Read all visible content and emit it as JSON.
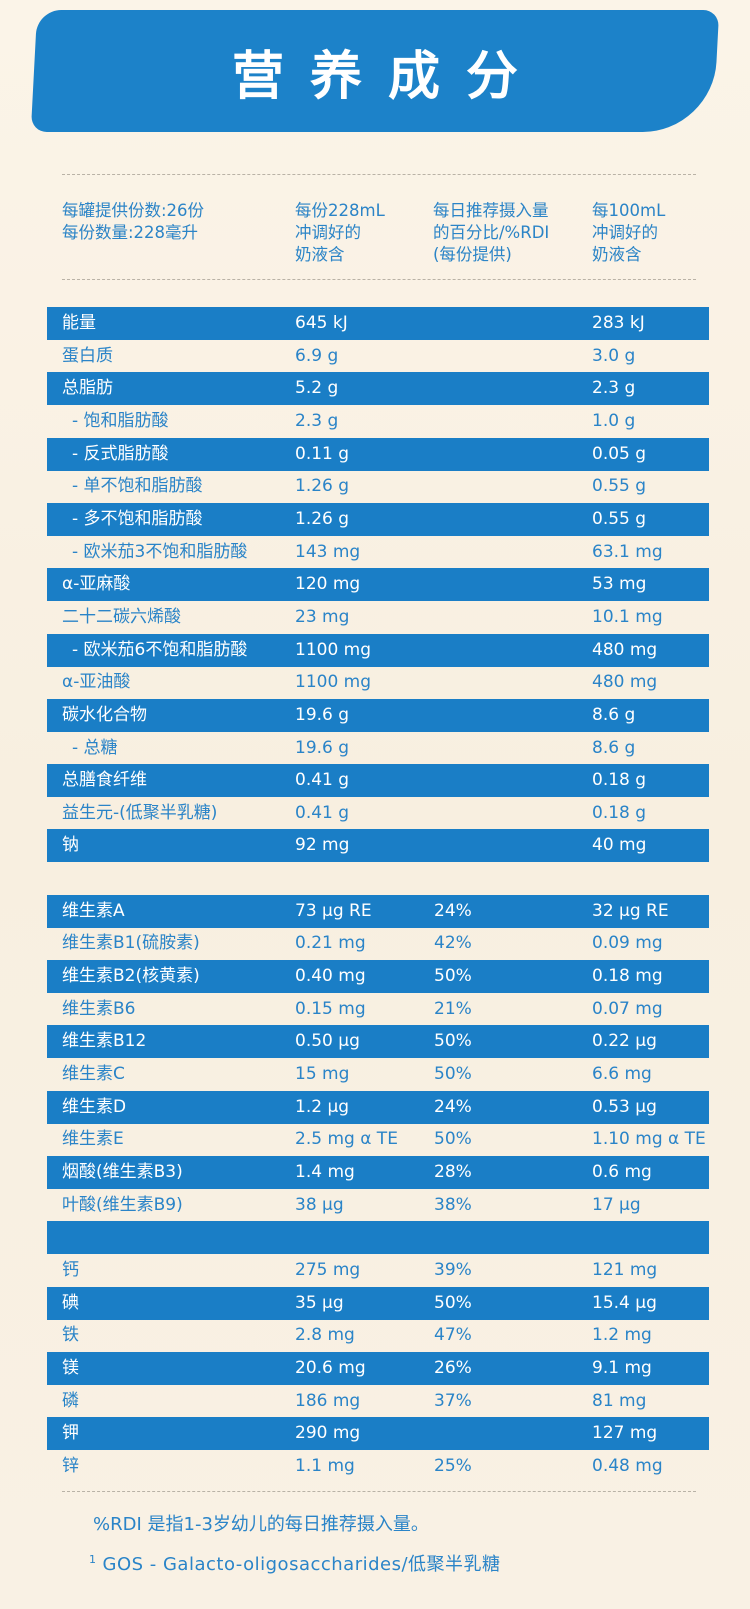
{
  "title": "营养成分",
  "header": {
    "col0": "每罐提供份数:26份\n每份数量:228毫升",
    "col1": "每份228mL\n冲调好的\n奶液含",
    "col2": "每日推荐摄入量\n的百分比/%RDI\n(每份提供)",
    "col3": "每100mL\n冲调好的\n奶液含"
  },
  "rows": [
    {
      "name": "能量",
      "per_serving": "645 kJ",
      "rdi": "",
      "per_100ml": "283 kJ",
      "style": "blue"
    },
    {
      "name": "蛋白质",
      "per_serving": "6.9 g",
      "rdi": "",
      "per_100ml": "3.0 g",
      "style": "light"
    },
    {
      "name": "总脂肪",
      "per_serving": "5.2 g",
      "rdi": "",
      "per_100ml": "2.3 g",
      "style": "blue"
    },
    {
      "name": "  - 饱和脂肪酸",
      "per_serving": "2.3 g",
      "rdi": "",
      "per_100ml": "1.0 g",
      "style": "light"
    },
    {
      "name": "  - 反式脂肪酸",
      "per_serving": "0.11 g",
      "rdi": "",
      "per_100ml": "0.05 g",
      "style": "blue"
    },
    {
      "name": "  - 单不饱和脂肪酸",
      "per_serving": "1.26 g",
      "rdi": "",
      "per_100ml": "0.55 g",
      "style": "light"
    },
    {
      "name": "  - 多不饱和脂肪酸",
      "per_serving": "1.26 g",
      "rdi": "",
      "per_100ml": "0.55 g",
      "style": "blue"
    },
    {
      "name": "  - 欧米茄3不饱和脂肪酸",
      "per_serving": "143 mg",
      "rdi": "",
      "per_100ml": "63.1 mg",
      "style": "light"
    },
    {
      "name": "α-亚麻酸",
      "per_serving": "120 mg",
      "rdi": "",
      "per_100ml": "53 mg",
      "style": "blue"
    },
    {
      "name": "二十二碳六烯酸",
      "per_serving": " 23 mg",
      "rdi": "",
      "per_100ml": "10.1 mg",
      "style": "light"
    },
    {
      "name": "  - 欧米茄6不饱和脂肪酸",
      "per_serving": "1100 mg",
      "rdi": "",
      "per_100ml": "480 mg",
      "style": "blue"
    },
    {
      "name": "α-亚油酸",
      "per_serving": "1100 mg",
      "rdi": "",
      "per_100ml": "480 mg",
      "style": "light"
    },
    {
      "name": "碳水化合物",
      "per_serving": "19.6 g",
      "rdi": "",
      "per_100ml": "8.6 g",
      "style": "blue"
    },
    {
      "name": "  - 总糖",
      "per_serving": "19.6 g",
      "rdi": "",
      "per_100ml": "8.6 g",
      "style": "light"
    },
    {
      "name": "总膳食纤维",
      "per_serving": "0.41 g",
      "rdi": "",
      "per_100ml": "0.18 g",
      "style": "blue"
    },
    {
      "name": "益生元-(低聚半乳糖)",
      "per_serving": "0.41 g",
      "rdi": "",
      "per_100ml": "0.18 g",
      "style": "light"
    },
    {
      "name": "钠",
      "per_serving": "92 mg",
      "rdi": "",
      "per_100ml": "40 mg",
      "style": "blue"
    },
    {
      "name": "",
      "per_serving": "",
      "rdi": "",
      "per_100ml": "",
      "style": "light"
    },
    {
      "name": "维生素A",
      "per_serving": "73 μg RE",
      "rdi": "24%",
      "per_100ml": "32 μg RE",
      "style": "blue"
    },
    {
      "name": "维生素B1(硫胺素)",
      "per_serving": "0.21 mg",
      "rdi": "42%",
      "per_100ml": "0.09 mg",
      "style": "light"
    },
    {
      "name": "维生素B2(核黄素)",
      "per_serving": "0.40 mg",
      "rdi": "50%",
      "per_100ml": "0.18 mg",
      "style": "blue"
    },
    {
      "name": "维生素B6",
      "per_serving": "0.15 mg",
      "rdi": "21%",
      "per_100ml": "0.07 mg",
      "style": "light"
    },
    {
      "name": "维生素B12",
      "per_serving": "0.50 μg",
      "rdi": "50%",
      "per_100ml": "0.22 μg",
      "style": "blue"
    },
    {
      "name": "维生素C",
      "per_serving": "15 mg",
      "rdi": "50%",
      "per_100ml": "6.6 mg",
      "style": "light"
    },
    {
      "name": "维生素D",
      "per_serving": "1.2 μg",
      "rdi": "24%",
      "per_100ml": "0.53 μg",
      "style": "blue"
    },
    {
      "name": "维生素E",
      "per_serving": "2.5 mg α TE",
      "rdi": "50%",
      "per_100ml": "1.10 mg α TE",
      "style": "light"
    },
    {
      "name": "烟酸(维生素B3)",
      "per_serving": "1.4 mg",
      "rdi": "28%",
      "per_100ml": "0.6 mg",
      "style": "blue"
    },
    {
      "name": "叶酸(维生素B9)",
      "per_serving": "38 μg",
      "rdi": "38%",
      "per_100ml": "17 μg",
      "style": "light"
    },
    {
      "name": "",
      "per_serving": "",
      "rdi": "",
      "per_100ml": "",
      "style": "blue"
    },
    {
      "name": "钙",
      "per_serving": "275 mg",
      "rdi": "39%",
      "per_100ml": "121 mg",
      "style": "light"
    },
    {
      "name": "碘",
      "per_serving": "35 μg",
      "rdi": "50%",
      "per_100ml": "15.4 μg",
      "style": "blue"
    },
    {
      "name": "铁",
      "per_serving": "2.8 mg",
      "rdi": "47%",
      "per_100ml": "1.2 mg",
      "style": "light"
    },
    {
      "name": "镁",
      "per_serving": "20.6 mg",
      "rdi": "26%",
      "per_100ml": "9.1 mg",
      "style": "blue"
    },
    {
      "name": "磷",
      "per_serving": "186 mg",
      "rdi": "37%",
      "per_100ml": "81 mg",
      "style": "light"
    },
    {
      "name": "钾",
      "per_serving": "290 mg",
      "rdi": "",
      "per_100ml": "127 mg",
      "style": "blue"
    },
    {
      "name": "锌",
      "per_serving": "1.1 mg",
      "rdi": "25%",
      "per_100ml": "0.48 mg",
      "style": "light"
    }
  ],
  "footnotes": {
    "rdi_note": "%RDI 是指1-3岁幼儿的每日推荐摄入量。",
    "gos_marker": "1",
    "gos_note": "GOS - Galacto-oligosaccharides/低聚半乳糖"
  },
  "colors": {
    "blue": "#1a7ec6",
    "text_blue": "#2a84c8",
    "background": "#f9f1e4"
  }
}
